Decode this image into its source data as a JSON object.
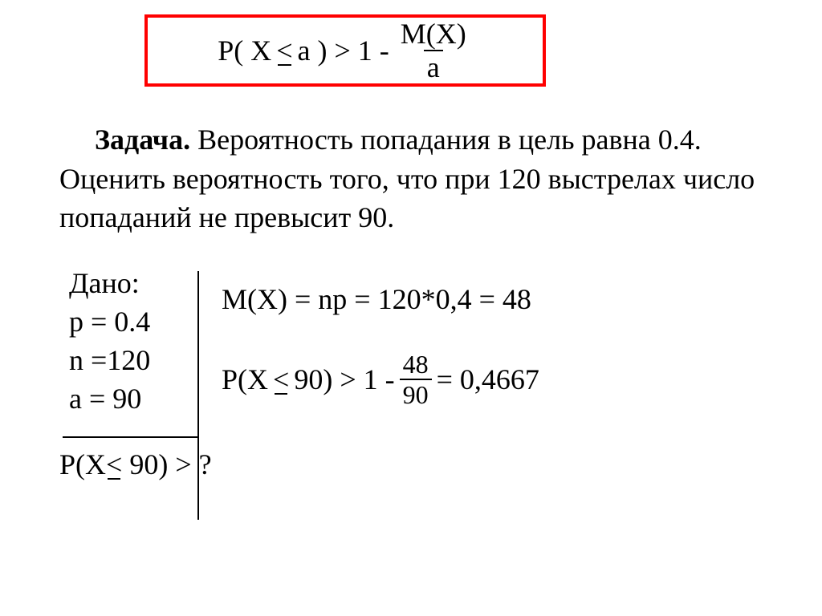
{
  "colors": {
    "box_border": "#ff0000",
    "text": "#000000",
    "background": "#ffffff"
  },
  "typography": {
    "font_family": "Times New Roman",
    "body_fontsize_pt": 27
  },
  "formula_box": {
    "lhs": "P( X",
    "le_sym": "<",
    "mid": "a ) > 1 -",
    "frac_num": "M(X)",
    "frac_den": "a"
  },
  "problem": {
    "label": "Задача.",
    "text": " Вероятность попадания в цель равна 0.4. Оценить вероятность того, что при 120 выстрелах число попаданий не превысит 90."
  },
  "given": {
    "title": "Дано:",
    "lines": [
      "p = 0.4",
      "n =120",
      "a = 90"
    ]
  },
  "find": {
    "pre": "P(X",
    "le_sym": "<",
    "post": " 90) > ?"
  },
  "calc_mx": "M(X) = np = 120*0,4 = 48",
  "calc_prob": {
    "pre": "P(X",
    "le_sym": "<",
    "mid": " 90) > 1 -",
    "frac_num": "48",
    "frac_den": "90",
    "post": " = 0,4667"
  }
}
